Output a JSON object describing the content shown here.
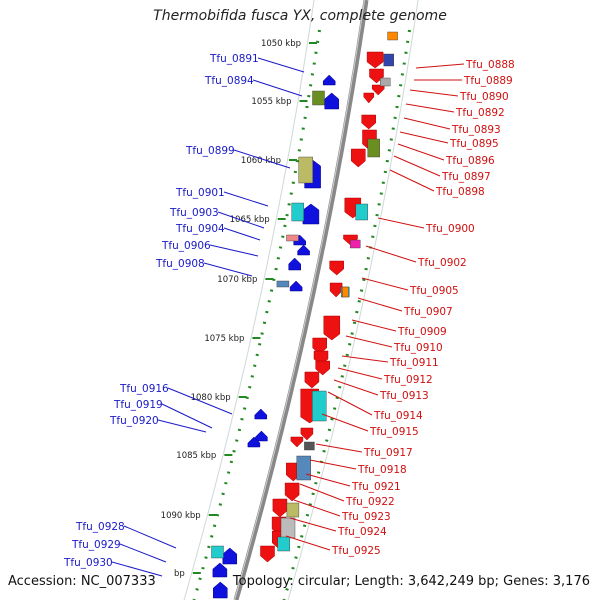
{
  "title": "Thermobifida fusca YX, complete genome",
  "footer": {
    "accession": "Accession: NC_007333",
    "summary": "Topology: circular; Length: 3,642,249 bp; Genes: 3,176"
  },
  "colors": {
    "forward_label": "#1a1ac8",
    "reverse_label": "#d01010",
    "backbone": "#888888",
    "tick": "#228822"
  },
  "kbp_marks": [
    {
      "label": "1050 kbp"
    },
    {
      "label": "1055 kbp"
    },
    {
      "label": "1060 kbp"
    },
    {
      "label": "1065 kbp"
    },
    {
      "label": "1070 kbp"
    },
    {
      "label": "1075 kbp"
    },
    {
      "label": "1080 kbp"
    },
    {
      "label": "1085 kbp"
    },
    {
      "label": "1090 kbp"
    },
    {
      "label": "bp"
    }
  ],
  "forward_genes": [
    {
      "label": "Tfu_0891"
    },
    {
      "label": "Tfu_0894"
    },
    {
      "label": "Tfu_0899"
    },
    {
      "label": "Tfu_0901"
    },
    {
      "label": "Tfu_0903"
    },
    {
      "label": "Tfu_0904"
    },
    {
      "label": "Tfu_0906"
    },
    {
      "label": "Tfu_0908"
    },
    {
      "label": "Tfu_0916"
    },
    {
      "label": "Tfu_0919"
    },
    {
      "label": "Tfu_0920"
    },
    {
      "label": "Tfu_0928"
    },
    {
      "label": "Tfu_0929"
    },
    {
      "label": "Tfu_0930"
    }
  ],
  "reverse_genes": [
    {
      "label": "Tfu_0888"
    },
    {
      "label": "Tfu_0889"
    },
    {
      "label": "Tfu_0890"
    },
    {
      "label": "Tfu_0892"
    },
    {
      "label": "Tfu_0893"
    },
    {
      "label": "Tfu_0895"
    },
    {
      "label": "Tfu_0896"
    },
    {
      "label": "Tfu_0897"
    },
    {
      "label": "Tfu_0898"
    },
    {
      "label": "Tfu_0900"
    },
    {
      "label": "Tfu_0902"
    },
    {
      "label": "Tfu_0905"
    },
    {
      "label": "Tfu_0907"
    },
    {
      "label": "Tfu_0909"
    },
    {
      "label": "Tfu_0910"
    },
    {
      "label": "Tfu_0911"
    },
    {
      "label": "Tfu_0912"
    },
    {
      "label": "Tfu_0913"
    },
    {
      "label": "Tfu_0914"
    },
    {
      "label": "Tfu_0915"
    },
    {
      "label": "Tfu_0917"
    },
    {
      "label": "Tfu_0918"
    },
    {
      "label": "Tfu_0921"
    },
    {
      "label": "Tfu_0922"
    },
    {
      "label": "Tfu_0923"
    },
    {
      "label": "Tfu_0924"
    },
    {
      "label": "Tfu_0925"
    }
  ]
}
